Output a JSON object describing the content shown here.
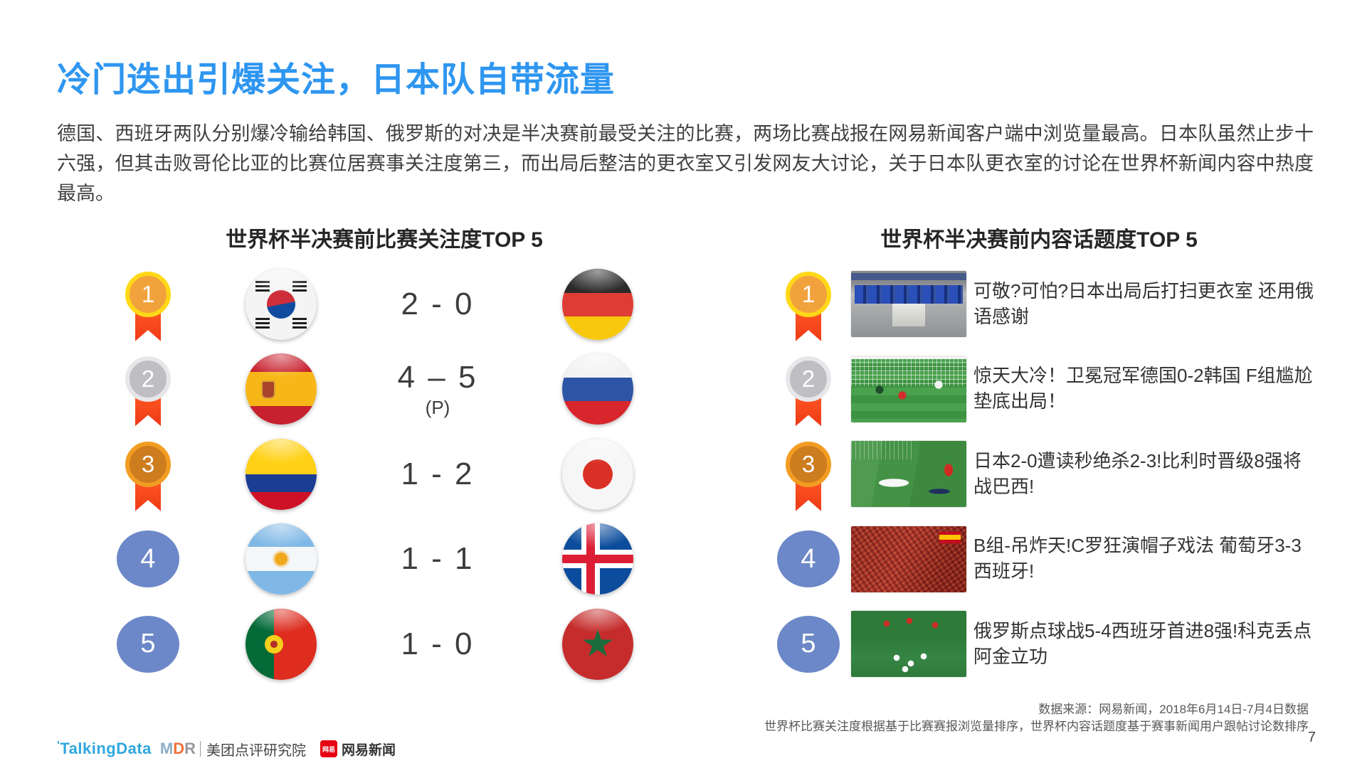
{
  "slide": {
    "title": "冷门迭出引爆关注，日本队自带流量",
    "paragraph": "德国、西班牙两队分别爆冷输给韩国、俄罗斯的对决是半决赛前最受关注的比赛，两场比赛战报在网易新闻客户端中浏览量最高。日本队虽然止步十六强，但其击败哥伦比亚的比赛位居赛事关注度第三，而出局后整洁的更衣室又引发网友大讨论，关于日本队更衣室的讨论在世界杯新闻内容中热度最高。",
    "page_number": "7"
  },
  "colors": {
    "accent_blue": "#2E96F0",
    "medal_gold": "#FFD817",
    "medal_silver": "#E7E7EA",
    "medal_bronze": "#F29D22",
    "ribbon_red": "#FF5722",
    "rank_badge_blue": "#6C88C8",
    "netease_red": "#E60012"
  },
  "left_panel": {
    "heading": "世界杯半决赛前比赛关注度TOP 5",
    "rows": [
      {
        "rank": "1",
        "home_flag": "south-korea",
        "score": "2 - 0",
        "note": "",
        "away_flag": "germany"
      },
      {
        "rank": "2",
        "home_flag": "spain",
        "score": "4 – 5",
        "note": "(P)",
        "away_flag": "russia"
      },
      {
        "rank": "3",
        "home_flag": "colombia",
        "score": "1 - 2",
        "note": "",
        "away_flag": "japan"
      },
      {
        "rank": "4",
        "home_flag": "argentina",
        "score": "1 - 1",
        "note": "",
        "away_flag": "iceland"
      },
      {
        "rank": "5",
        "home_flag": "portugal",
        "score": "1 - 0",
        "note": "",
        "away_flag": "morocco"
      }
    ]
  },
  "right_panel": {
    "heading": "世界杯半决赛前内容话题度TOP 5",
    "rows": [
      {
        "rank": "1",
        "photo": "japan-locker-room",
        "title": "可敬?可怕?日本出局后打扫更衣室 还用俄语感谢"
      },
      {
        "rank": "2",
        "photo": "germany-korea-goal",
        "title": "惊天大冷！卫冕冠军德国0-2韩国 F组尴尬垫底出局！"
      },
      {
        "rank": "3",
        "photo": "japan-belgium-pitch",
        "title": "日本2-0遭读秒绝杀2-3!比利时晋级8强将战巴西!"
      },
      {
        "rank": "4",
        "photo": "portugal-spain-fans",
        "title": "B组-吊炸天!C罗狂演帽子戏法 葡萄牙3-3西班牙!"
      },
      {
        "rank": "5",
        "photo": "russia-spain-celebration",
        "title": "俄罗斯点球战5-4西班牙首进8强!科克丢点阿金立功"
      }
    ]
  },
  "footer": {
    "source_line1": "数据来源：网易新闻，2018年6月14日-7月4日数据",
    "source_line2": "世界杯比赛关注度根据基于比赛赛报浏览量排序，世界杯内容话题度基于赛事新闻用户跟帖讨论数排序",
    "logos": {
      "talkingdata_tick": "'",
      "talkingdata": "TalkingData",
      "mdr_m": "M",
      "mdr_d": "D",
      "mdr_r": "R",
      "meituan": "美团点评研究院",
      "netease_badge": "网易",
      "netease": "网易新闻"
    }
  }
}
